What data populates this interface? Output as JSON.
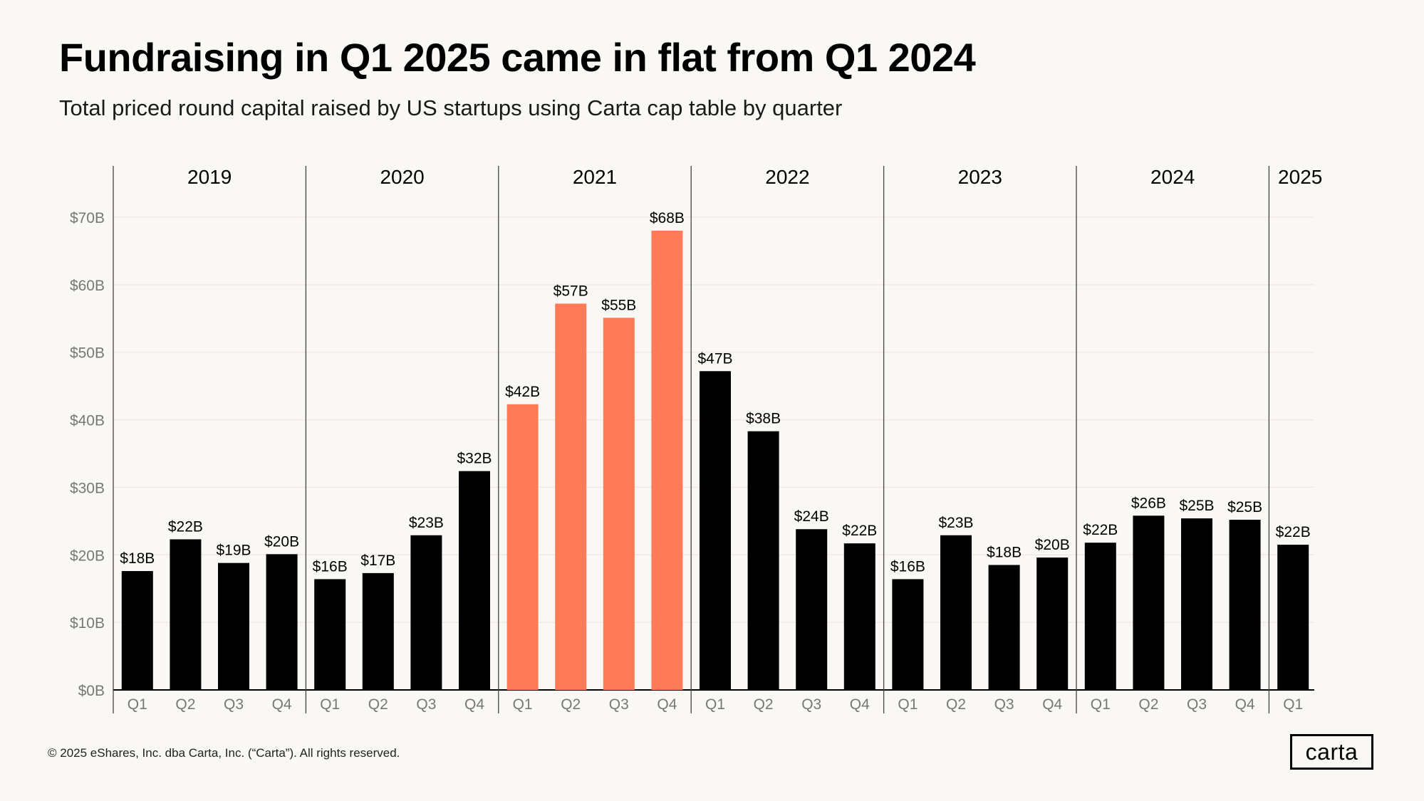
{
  "header": {
    "title": "Fundraising in Q1 2025 came in flat from Q1 2024",
    "subtitle": "Total priced round capital raised by US startups using Carta cap table by quarter"
  },
  "footer": {
    "copyright": "© 2025 eShares, Inc. dba Carta, Inc. (“Carta”). All rights reserved.",
    "logo_text": "carta"
  },
  "colors": {
    "background": "#FAF8F4",
    "bar_default": "#000000",
    "bar_highlight": "#FF7B57",
    "gridline": "#EEEAE3",
    "axis_label": "#777777"
  },
  "chart_data": {
    "type": "bar",
    "title": "Fundraising in Q1 2025 came in flat from Q1 2024",
    "subtitle": "Total priced round capital raised by US startups using Carta cap table by quarter",
    "xlabel": "",
    "ylabel": "",
    "ylim": [
      0,
      70
    ],
    "y_unit": "billion USD",
    "y_ticks": [
      0,
      10,
      20,
      30,
      40,
      50,
      60,
      70
    ],
    "y_tick_labels": [
      "$0B",
      "$10B",
      "$20B",
      "$30B",
      "$40B",
      "$50B",
      "$60B",
      "$70B"
    ],
    "grid": true,
    "groups": [
      {
        "label": "2019",
        "count": 4
      },
      {
        "label": "2020",
        "count": 4
      },
      {
        "label": "2021",
        "count": 4
      },
      {
        "label": "2022",
        "count": 4
      },
      {
        "label": "2023",
        "count": 4
      },
      {
        "label": "2024",
        "count": 4
      },
      {
        "label": "2025",
        "count": 1
      }
    ],
    "categories": [
      "Q1",
      "Q2",
      "Q3",
      "Q4",
      "Q1",
      "Q2",
      "Q3",
      "Q4",
      "Q1",
      "Q2",
      "Q3",
      "Q4",
      "Q1",
      "Q2",
      "Q3",
      "Q4",
      "Q1",
      "Q2",
      "Q3",
      "Q4",
      "Q1",
      "Q2",
      "Q3",
      "Q4",
      "Q1"
    ],
    "values": [
      17.6,
      22.3,
      18.8,
      20.1,
      16.4,
      17.3,
      22.9,
      32.4,
      42.3,
      57.2,
      55.1,
      68.0,
      47.2,
      38.3,
      23.8,
      21.7,
      16.4,
      22.9,
      18.5,
      19.6,
      21.8,
      25.8,
      25.4,
      25.2,
      21.5
    ],
    "data_labels": [
      "$18B",
      "$22B",
      "$19B",
      "$20B",
      "$16B",
      "$17B",
      "$23B",
      "$32B",
      "$42B",
      "$57B",
      "$55B",
      "$68B",
      "$47B",
      "$38B",
      "$24B",
      "$22B",
      "$16B",
      "$23B",
      "$18B",
      "$20B",
      "$22B",
      "$26B",
      "$25B",
      "$25B",
      "$22B"
    ],
    "highlight": [
      false,
      false,
      false,
      false,
      false,
      false,
      false,
      false,
      true,
      true,
      true,
      true,
      false,
      false,
      false,
      false,
      false,
      false,
      false,
      false,
      false,
      false,
      false,
      false,
      false
    ]
  }
}
